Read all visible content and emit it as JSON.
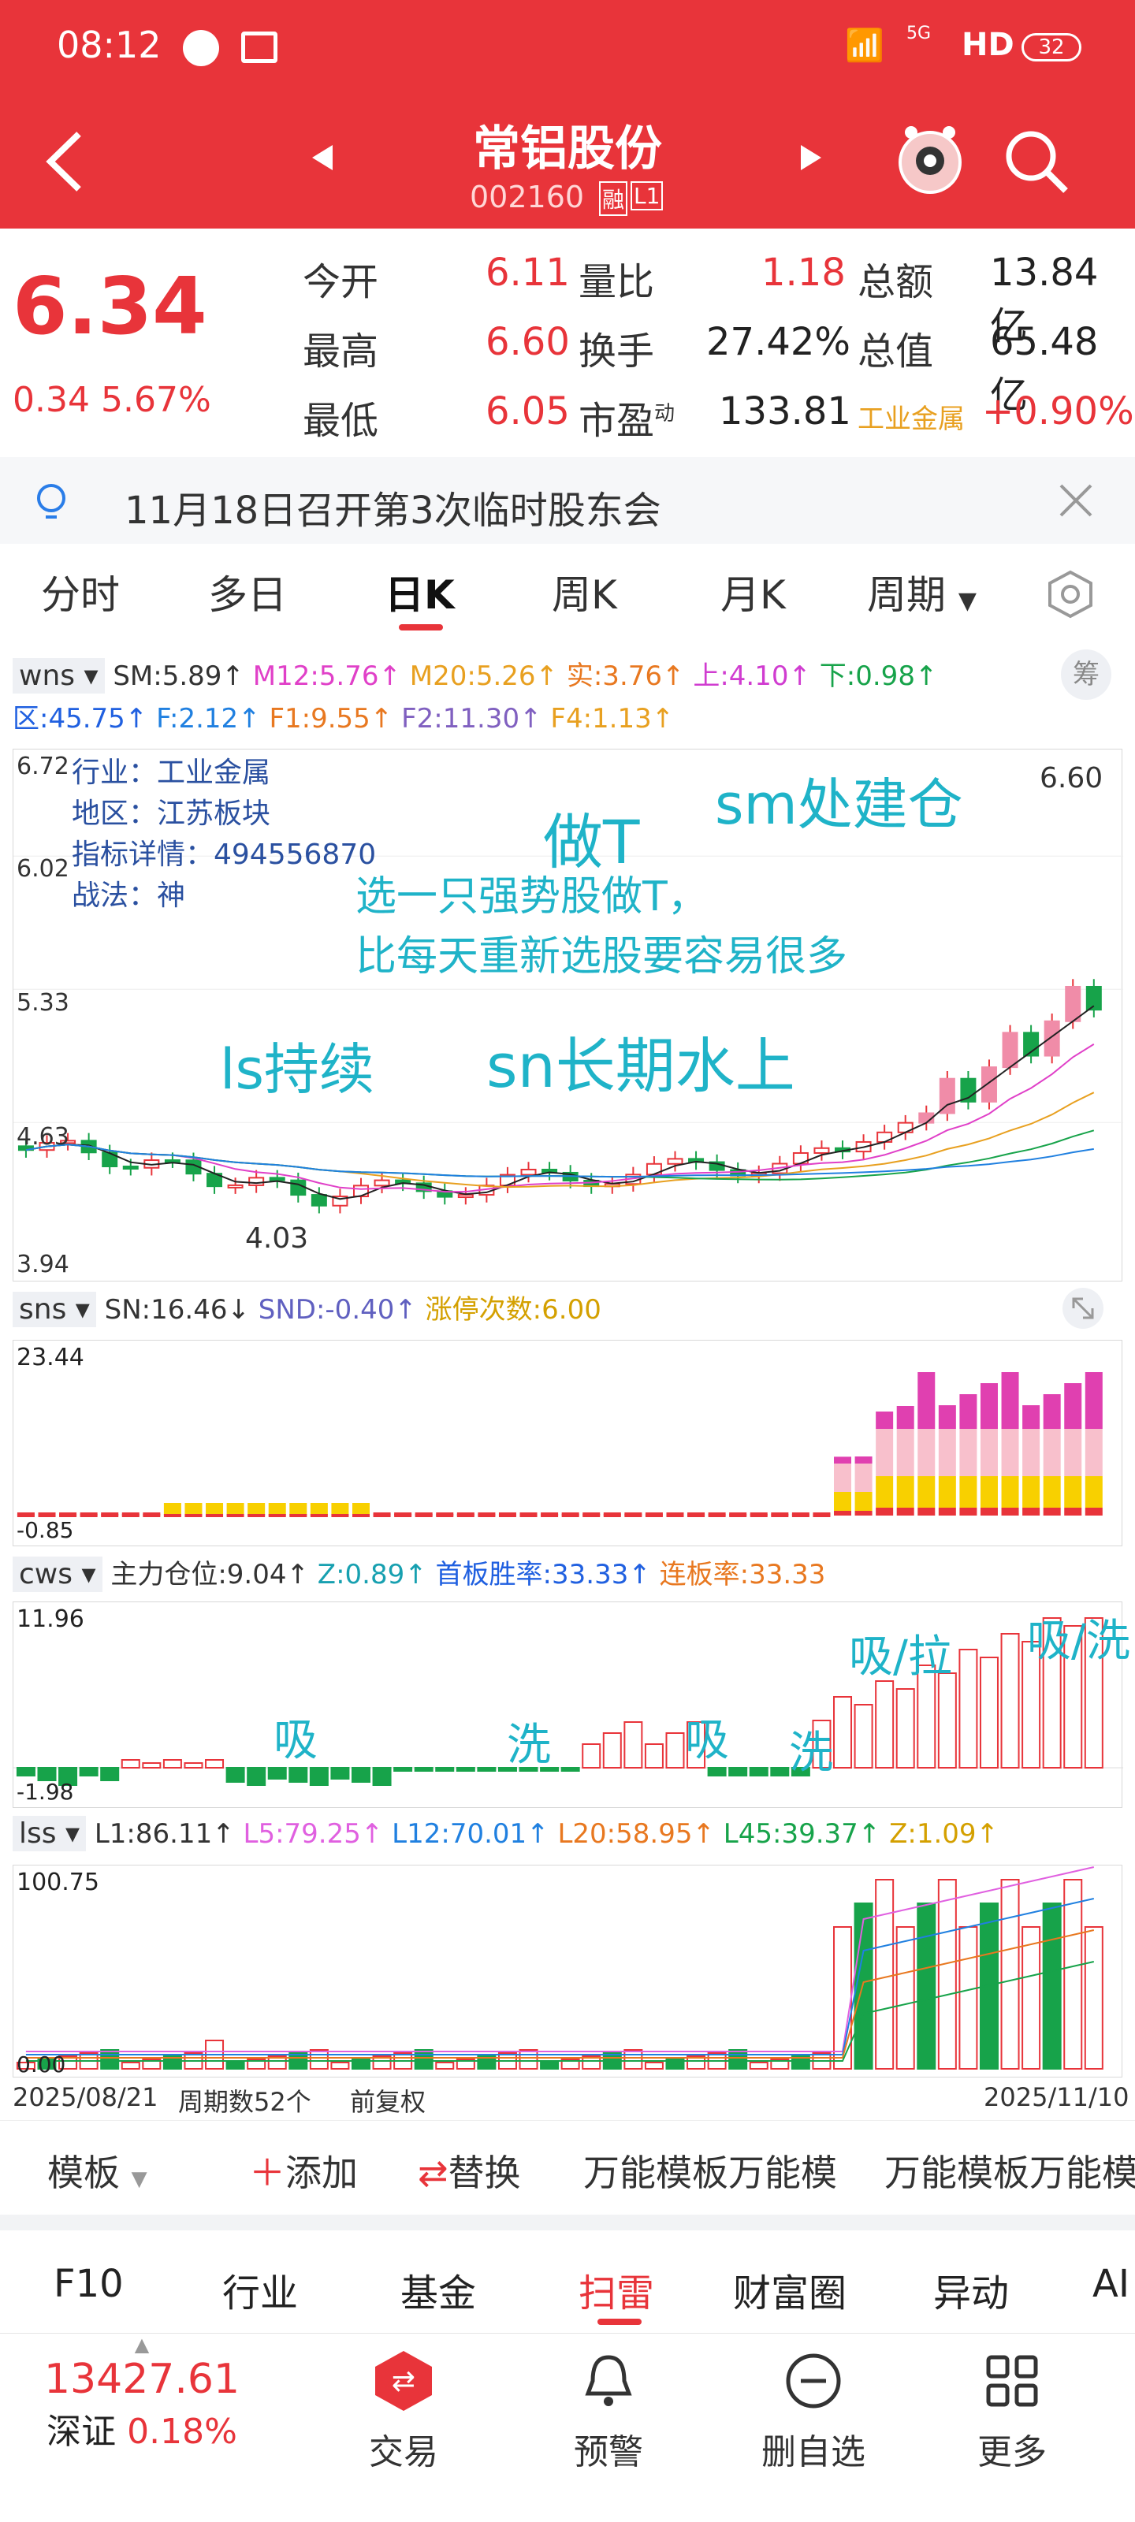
{
  "status": {
    "time": "08:12",
    "net": "5G",
    "hd": "HD",
    "battery": "32"
  },
  "header": {
    "title": "常铝股份",
    "code": "002160",
    "badge1": "融",
    "badge2": "L1"
  },
  "quote": {
    "price": "6.34",
    "change": "0.34",
    "pct": "5.67%",
    "fields": [
      {
        "label": "今开",
        "value": "6.11"
      },
      {
        "label": "量比",
        "value": "1.18"
      },
      {
        "label": "总额",
        "value": "13.84亿"
      },
      {
        "label": "最高",
        "value": "6.60"
      },
      {
        "label": "换手",
        "value": "27.42%"
      },
      {
        "label": "总值",
        "value": "65.48亿"
      },
      {
        "label": "最低",
        "value": "6.05"
      },
      {
        "label": "市盈",
        "sup": "动",
        "value": "133.81"
      },
      {
        "label": "工业金属",
        "value": "+0.90%"
      }
    ]
  },
  "notice": {
    "text": "11月18日召开第3次临时股东会"
  },
  "tabs": [
    "分时",
    "多日",
    "日K",
    "周K",
    "月K",
    "周期"
  ],
  "main": {
    "name": "wns",
    "line1": [
      {
        "t": "SM:5.89↑",
        "c": "#333"
      },
      {
        "t": "M12:5.76↑",
        "c": "#e040c8"
      },
      {
        "t": "M20:5.26↑",
        "c": "#e8a020"
      },
      {
        "t": "实:3.76↑",
        "c": "#e87820"
      },
      {
        "t": "上:4.10↑",
        "c": "#d03cd0"
      },
      {
        "t": "下:0.98↑",
        "c": "#17a34a"
      }
    ],
    "line2": [
      {
        "t": "区:45.75↑",
        "c": "#2060e0"
      },
      {
        "t": "F:2.12↑",
        "c": "#2080e0"
      },
      {
        "t": "F1:9.55↑",
        "c": "#e87820"
      },
      {
        "t": "F2:11.30↑",
        "c": "#8060c0"
      },
      {
        "t": "F4:1.13↑",
        "c": "#e8a020"
      }
    ],
    "chou": "筹",
    "yticks": [
      "6.72",
      "6.02",
      "5.33",
      "4.63",
      "3.94"
    ],
    "info": [
      "行业：工业金属",
      "地区：江苏板块",
      "指标详情：494556870",
      "战法：神"
    ],
    "high_label": "6.60",
    "low_label": "4.03",
    "annotations": {
      "a1": "做T",
      "a2": "sm处建仓",
      "a3": "选一只强势股做T，",
      "a4": "比每天重新选股要容易很多",
      "a5": "ls持续",
      "a6": "sn长期水上"
    }
  },
  "sns": {
    "name": "sns",
    "items": [
      {
        "t": "SN:16.46↓",
        "c": "#333"
      },
      {
        "t": "SND:-0.40↑",
        "c": "#6060c0"
      },
      {
        "t": "涨停次数:6.00",
        "c": "#d4a000"
      }
    ],
    "ymax": "23.44",
    "ymin": "-0.85"
  },
  "cws": {
    "name": "cws",
    "items": [
      {
        "t": "主力仓位:9.04↑",
        "c": "#333"
      },
      {
        "t": "Z:0.89↑",
        "c": "#17a0b0"
      },
      {
        "t": "首板胜率:33.33↑",
        "c": "#2060e0"
      },
      {
        "t": "连板率:33.33",
        "c": "#e87820"
      }
    ],
    "ymax": "11.96",
    "ymin": "-1.98",
    "annotations": [
      "吸",
      "洗",
      "吸",
      "洗",
      "吸/拉",
      "吸/洗"
    ]
  },
  "lss": {
    "name": "lss",
    "items": [
      {
        "t": "L1:86.11↑",
        "c": "#333"
      },
      {
        "t": "L5:79.25↑",
        "c": "#e060e0"
      },
      {
        "t": "L12:70.01↑",
        "c": "#2080e0"
      },
      {
        "t": "L20:58.95↑",
        "c": "#e87820"
      },
      {
        "t": "L45:39.37↑",
        "c": "#17a34a"
      },
      {
        "t": "Z:1.09↑",
        "c": "#d4a000"
      }
    ],
    "ymax": "100.75",
    "ymin": "0.00"
  },
  "footer_axis": {
    "start": "2025/08/21",
    "period": "周期数52个",
    "adj": "前复权",
    "end": "2025/11/10"
  },
  "template_bar": {
    "template": "模板",
    "add": "添加",
    "replace": "替换",
    "t1": "万能模板万能模",
    "t2": "万能模板万能模"
  },
  "subnav": [
    "F10",
    "行业",
    "基金",
    "扫雷",
    "财富圈",
    "异动",
    "AI"
  ],
  "bottom": {
    "index_value": "13427.61",
    "index_name": "深证",
    "index_pct": "0.18%",
    "trade": "交易",
    "alert": "预警",
    "remove": "删自选",
    "more": "更多"
  },
  "colors": {
    "red": "#e8343a",
    "green": "#17a34a",
    "cyan": "#1fb3c8"
  }
}
